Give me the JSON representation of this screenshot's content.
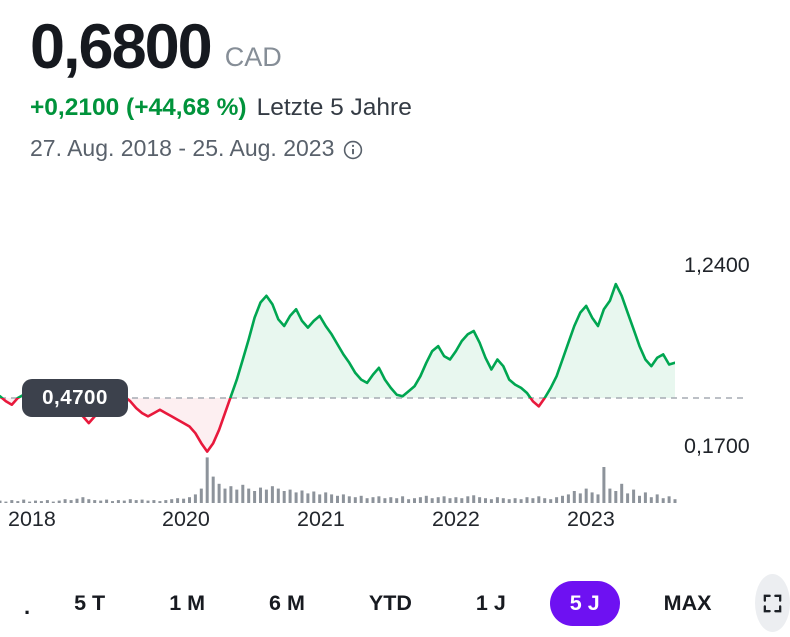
{
  "header": {
    "price": "0,6800",
    "currency": "CAD",
    "change": "+0,2100 (+44,68 %)",
    "range_label": "Letzte 5 Jahre",
    "date_range": "27. Aug. 2018 - 25. Aug. 2023"
  },
  "chart": {
    "prev_close_badge": "0,4700",
    "axis_right": {
      "top": "1,2400",
      "bottom": "0,1700"
    },
    "x_ticks": [
      "2018",
      "2020",
      "2021",
      "2022",
      "2023"
    ]
  },
  "chart_data": {
    "type": "line",
    "title": "5-year price chart with volume",
    "currency": "CAD",
    "previous_close": 0.47,
    "last_price": 0.68,
    "y_gridline_labels": [
      1.24,
      0.17
    ],
    "x_tick_labels": [
      "2018",
      "2020",
      "2021",
      "2022",
      "2023"
    ],
    "legend_position": "none",
    "grid": "dashed-previous-close-only",
    "prices": [
      0.48,
      0.45,
      0.43,
      0.47,
      0.49,
      0.45,
      0.42,
      0.44,
      0.46,
      0.42,
      0.39,
      0.42,
      0.44,
      0.41,
      0.36,
      0.32,
      0.36,
      0.4,
      0.42,
      0.44,
      0.46,
      0.48,
      0.45,
      0.41,
      0.38,
      0.36,
      0.38,
      0.4,
      0.38,
      0.36,
      0.34,
      0.32,
      0.3,
      0.26,
      0.2,
      0.15,
      0.2,
      0.28,
      0.38,
      0.48,
      0.58,
      0.7,
      0.82,
      0.95,
      1.04,
      1.08,
      1.03,
      0.94,
      0.9,
      0.96,
      1.0,
      0.93,
      0.89,
      0.93,
      0.96,
      0.9,
      0.85,
      0.79,
      0.73,
      0.68,
      0.62,
      0.58,
      0.56,
      0.61,
      0.65,
      0.58,
      0.53,
      0.49,
      0.48,
      0.51,
      0.54,
      0.6,
      0.68,
      0.75,
      0.78,
      0.72,
      0.7,
      0.75,
      0.81,
      0.85,
      0.87,
      0.8,
      0.71,
      0.64,
      0.7,
      0.66,
      0.58,
      0.55,
      0.53,
      0.5,
      0.45,
      0.42,
      0.47,
      0.53,
      0.6,
      0.7,
      0.8,
      0.9,
      0.98,
      1.02,
      0.95,
      0.9,
      1.0,
      1.05,
      1.15,
      1.08,
      0.98,
      0.88,
      0.78,
      0.7,
      0.66,
      0.71,
      0.73,
      0.67,
      0.68
    ],
    "volumes": [
      5,
      3,
      6,
      4,
      7,
      3,
      5,
      4,
      6,
      3,
      5,
      8,
      6,
      9,
      12,
      8,
      6,
      5,
      7,
      4,
      6,
      5,
      8,
      6,
      7,
      5,
      6,
      4,
      6,
      8,
      10,
      9,
      12,
      18,
      30,
      95,
      55,
      40,
      30,
      35,
      28,
      38,
      30,
      25,
      32,
      28,
      35,
      30,
      25,
      28,
      22,
      26,
      20,
      24,
      18,
      22,
      18,
      15,
      18,
      14,
      12,
      15,
      10,
      12,
      14,
      10,
      12,
      10,
      14,
      8,
      10,
      12,
      15,
      10,
      12,
      14,
      10,
      12,
      10,
      14,
      16,
      12,
      10,
      8,
      12,
      10,
      8,
      10,
      8,
      12,
      10,
      14,
      10,
      8,
      12,
      15,
      18,
      25,
      20,
      30,
      22,
      18,
      75,
      30,
      25,
      40,
      20,
      28,
      15,
      22,
      12,
      18,
      10,
      14,
      8
    ],
    "colors": {
      "up": "#00a651",
      "down": "#e8193c",
      "volume": "#8d939b",
      "dashed_line": "#a6acb4"
    }
  },
  "toolbar": {
    "overflow_dot": ".",
    "selected_color": "#6e11f2",
    "ranges": [
      {
        "label": "5 T",
        "selected": false
      },
      {
        "label": "1 M",
        "selected": false
      },
      {
        "label": "6 M",
        "selected": false
      },
      {
        "label": "YTD",
        "selected": false
      },
      {
        "label": "1 J",
        "selected": false
      },
      {
        "label": "5 J",
        "selected": true
      },
      {
        "label": "MAX",
        "selected": false
      }
    ]
  }
}
